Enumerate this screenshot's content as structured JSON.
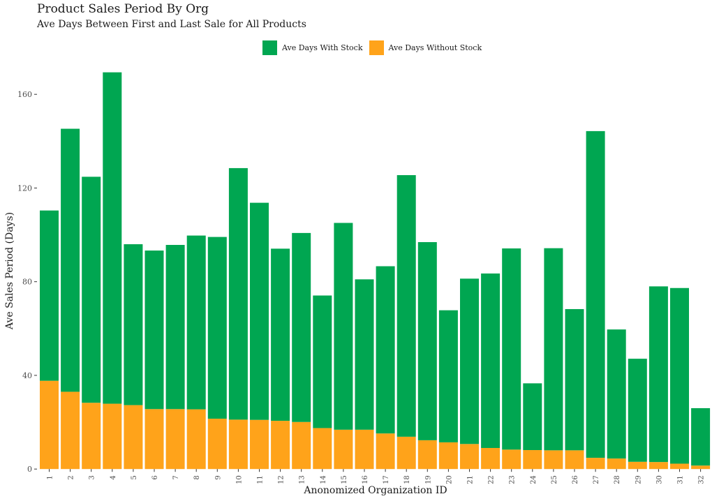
{
  "chart_data": {
    "type": "bar",
    "stacked": true,
    "title": "Product Sales Period By Org",
    "subtitle": "Ave Days Between First and Last Sale for All Products",
    "xlabel": "Anonomized Organization ID",
    "ylabel": "Ave Sales Period (Days)",
    "ylim": [
      0,
      170
    ],
    "yticks": [
      0,
      40,
      80,
      120,
      160
    ],
    "legend_position": "top",
    "categories": [
      "1",
      "2",
      "3",
      "4",
      "5",
      "6",
      "7",
      "8",
      "9",
      "10",
      "11",
      "12",
      "13",
      "14",
      "15",
      "16",
      "17",
      "18",
      "19",
      "20",
      "21",
      "22",
      "23",
      "24",
      "25",
      "26",
      "27",
      "28",
      "29",
      "30",
      "31",
      "32"
    ],
    "series": [
      {
        "name": "Ave Days Without Stock",
        "color": "#FFA31A",
        "values": [
          37.7,
          33,
          28.3,
          27.9,
          27.3,
          25.6,
          25.6,
          25.5,
          21.5,
          21.1,
          21,
          20.6,
          20.1,
          17.5,
          16.8,
          16.8,
          15.2,
          13.8,
          12.3,
          11.4,
          10.7,
          9,
          8.3,
          8.1,
          8,
          8,
          4.8,
          4.5,
          3.1,
          3,
          2.3,
          1.5
        ]
      },
      {
        "name": "Ave Days With Stock",
        "color": "#00A651",
        "values": [
          72.7,
          112.3,
          96.5,
          141.5,
          68.7,
          67.7,
          70.1,
          74.2,
          77.6,
          107.4,
          92.7,
          73.5,
          80.7,
          56.6,
          88.3,
          64.2,
          71.4,
          111.7,
          84.6,
          56.4,
          70.6,
          74.5,
          85.9,
          28.5,
          86.3,
          60.3,
          139.5,
          55.1,
          44,
          75,
          75,
          24.5
        ]
      }
    ]
  }
}
